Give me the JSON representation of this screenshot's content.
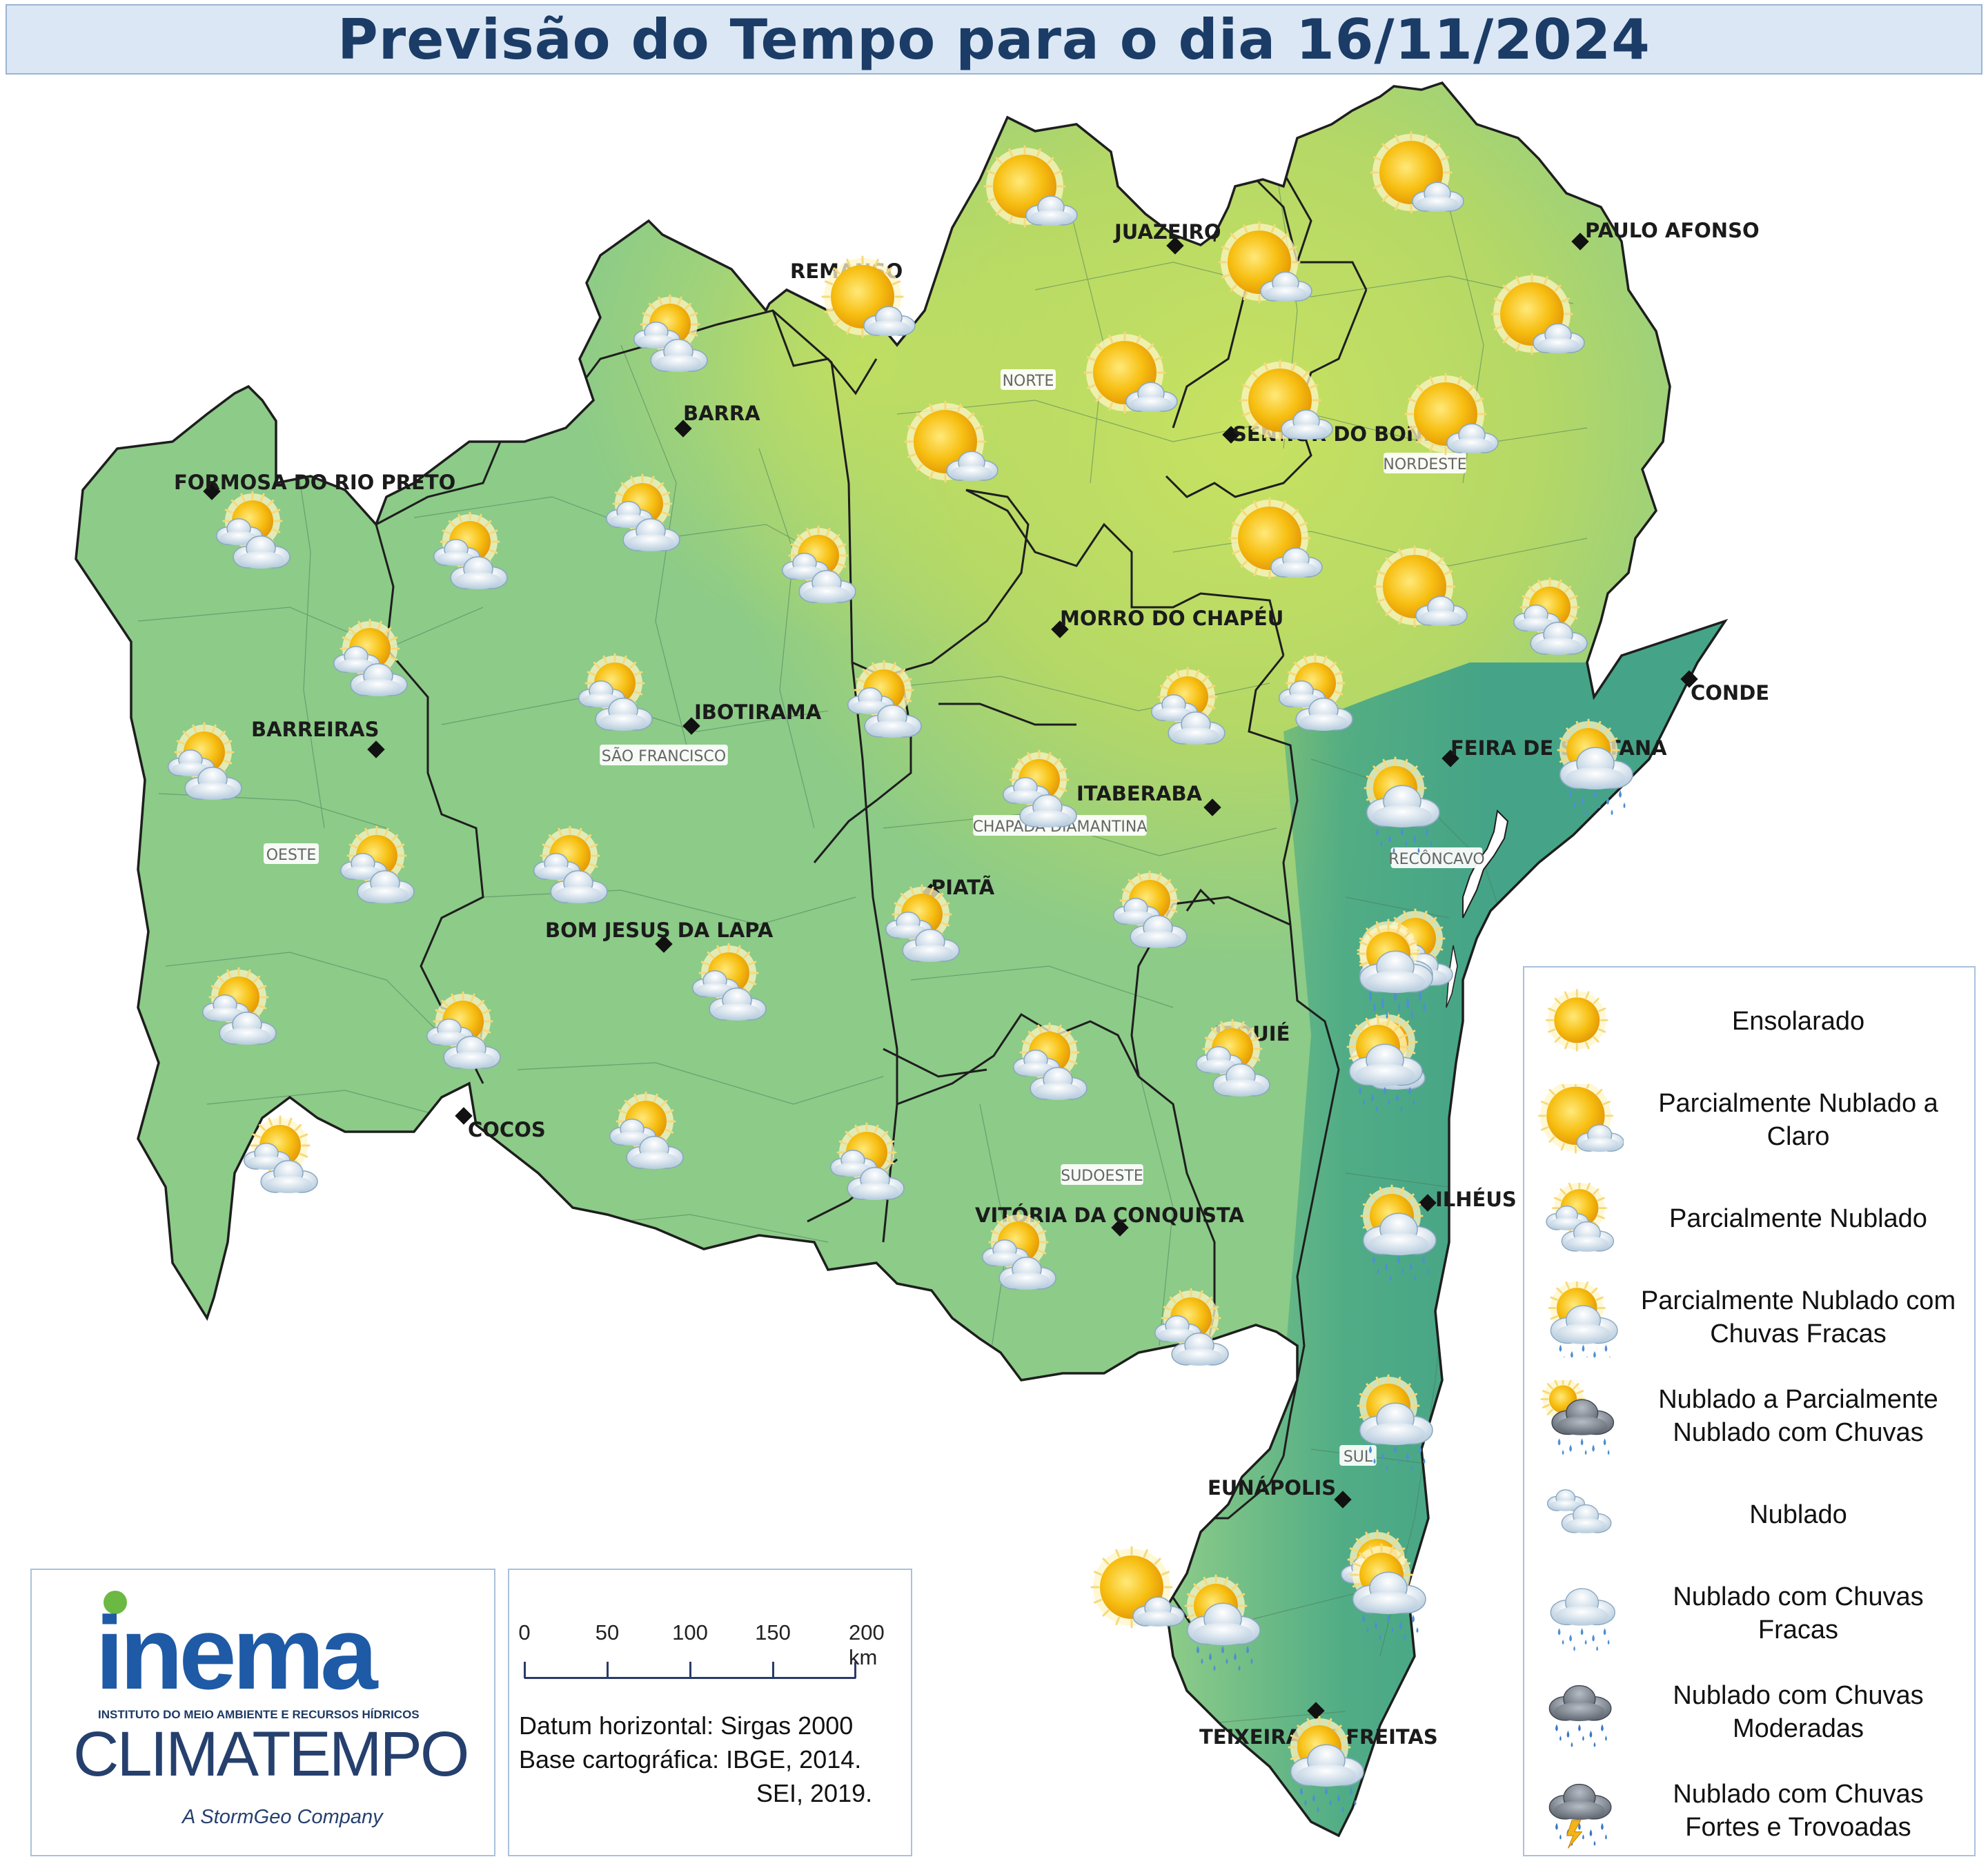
{
  "title": "Previsão do Tempo para o dia 16/11/2024",
  "map": {
    "cities": [
      {
        "name": "JUAZEIRO"
      },
      {
        "name": "PAULO AFONSO"
      },
      {
        "name": "REMANSO"
      },
      {
        "name": "BARRA"
      },
      {
        "name": "SENHOR DO BONFIM"
      },
      {
        "name": "FORMOSA DO RIO PRETO"
      },
      {
        "name": "MORRO DO CHAPÉU"
      },
      {
        "name": "CONDE"
      },
      {
        "name": "IBOTIRAMA"
      },
      {
        "name": "BARREIRAS"
      },
      {
        "name": "FEIRA DE SANTANA"
      },
      {
        "name": "ITABERABA"
      },
      {
        "name": "PIATÃ"
      },
      {
        "name": "BOM JESUS DA LAPA"
      },
      {
        "name": "JEQUIÉ"
      },
      {
        "name": "COCOS"
      },
      {
        "name": "ILHÉUS"
      },
      {
        "name": "VITÓRIA DA CONQUISTA"
      },
      {
        "name": "EUNÁPOLIS"
      },
      {
        "name": "TEIXEIRA DE FREITAS"
      }
    ],
    "regions": [
      {
        "name": "NORTE"
      },
      {
        "name": "NORDESTE"
      },
      {
        "name": "SÃO FRANCISCO"
      },
      {
        "name": "CHAPADA DIAMANTINA"
      },
      {
        "name": "OESTE"
      },
      {
        "name": "RECÔNCAVO"
      },
      {
        "name": "SUDOESTE"
      },
      {
        "name": "SUL"
      }
    ],
    "forecast_icons": [
      "partly-cloudy-clear",
      "partly-cloudy-clear",
      "partly-cloudy-clear",
      "partly-cloudy-clear",
      "partly-cloudy-clear",
      "partly-cloudy-clear",
      "partly-cloudy-clear",
      "partly-cloudy-clear",
      "partly-cloudy-clear",
      "partly-cloudy-clear",
      "partly-cloudy-clear",
      "partly-cloudy-clear",
      "partly-cloudy",
      "partly-cloudy",
      "partly-cloudy",
      "partly-cloudy",
      "partly-cloudy",
      "partly-cloudy",
      "partly-cloudy",
      "partly-cloudy",
      "partly-cloudy",
      "partly-cloudy",
      "partly-cloudy",
      "partly-cloudy",
      "partly-cloudy",
      "partly-cloudy",
      "partly-cloudy",
      "partly-cloudy",
      "partly-cloudy",
      "partly-cloudy",
      "partly-cloudy",
      "partly-cloudy",
      "partly-cloudy",
      "partly-cloudy",
      "partly-cloudy",
      "partly-cloudy",
      "partly-cloudy",
      "partly-cloudy",
      "partly-cloudy",
      "partly-cloudy",
      "partly-cloudy",
      "partly-cloudy",
      "partly-cloudy-light-rain",
      "partly-cloudy-light-rain",
      "partly-cloudy-light-rain",
      "partly-cloudy-light-rain",
      "partly-cloudy-light-rain",
      "partly-cloudy-light-rain",
      "partly-cloudy-light-rain",
      "partly-cloudy-light-rain",
      "partly-cloudy-light-rain",
      "partly-cloudy-light-rain"
    ]
  },
  "legend": {
    "items": [
      {
        "icon": "sunny",
        "label": "Ensolarado"
      },
      {
        "icon": "partly-cloudy-clear",
        "label": "Parcialmente Nublado a\nClaro"
      },
      {
        "icon": "partly-cloudy",
        "label": "Parcialmente Nublado"
      },
      {
        "icon": "partly-cloudy-light-rain",
        "label": "Parcialmente Nublado com\nChuvas Fracas"
      },
      {
        "icon": "cloudy-partly-cloudy-rain",
        "label": "Nublado a Parcialmente\nNublado com Chuvas"
      },
      {
        "icon": "cloudy",
        "label": "Nublado"
      },
      {
        "icon": "cloudy-light-rain",
        "label": "Nublado com Chuvas\nFracas"
      },
      {
        "icon": "cloudy-moderate-rain",
        "label": "Nublado com Chuvas\nModeradas"
      },
      {
        "icon": "cloudy-heavy-rain-thunder",
        "label": "Nublado com Chuvas\nFortes e Trovoadas"
      }
    ]
  },
  "logos": {
    "inema": "inema",
    "inema_subtitle": "INSTITUTO DO MEIO AMBIENTE E RECURSOS HÍDRICOS",
    "climatempo": "CLIMATEMPO",
    "climatempo_subtitle": "A StormGeo Company"
  },
  "scale": {
    "ticks": [
      "0",
      "50",
      "100",
      "150",
      "200 km"
    ],
    "datum": "Datum horizontal: Sirgas 2000",
    "base_line1": "Base cartográfica: IBGE, 2014.",
    "base_line2": "SEI, 2019."
  },
  "colors": {
    "title_text": "#1b3c66",
    "title_bg": "#dbe7f4",
    "map_west": "#8ccb88",
    "map_north": "#c3df62",
    "map_coast": "#4ead86",
    "inema_blue": "#1e5aa6",
    "inema_green": "#6bb843"
  }
}
